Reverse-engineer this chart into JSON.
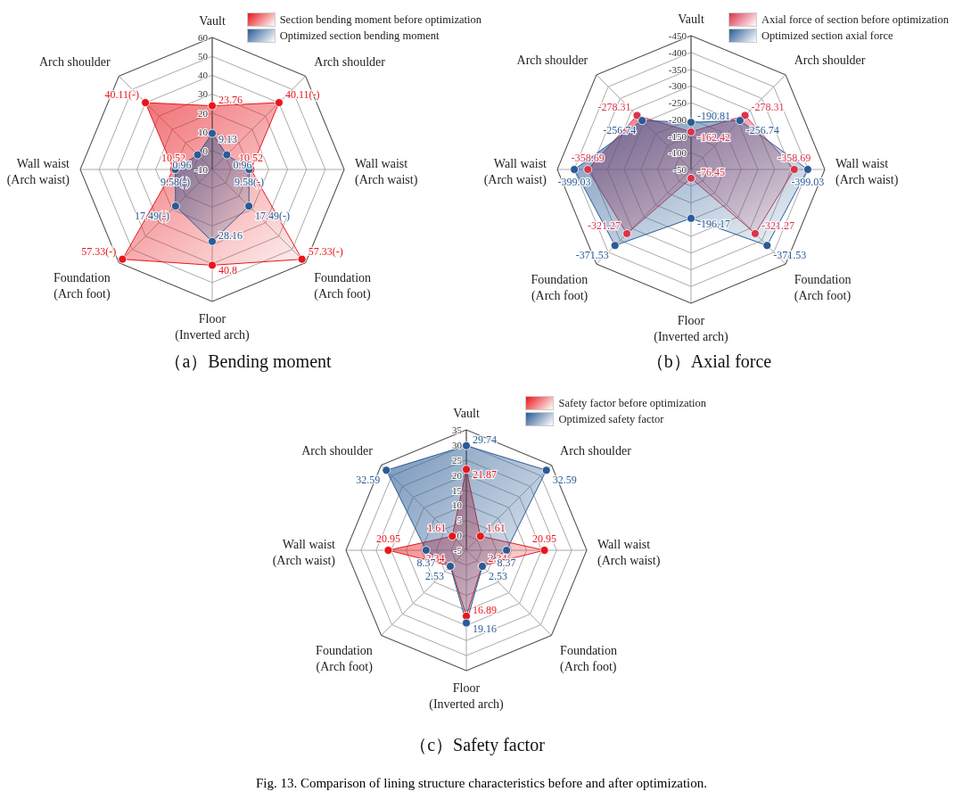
{
  "chart_data": [
    {
      "type": "radar",
      "title": "（a）Bending moment",
      "categories": [
        "Vault",
        "Arch shoulder",
        "Wall waist\n(Arch waist)",
        "Foundation\n(Arch foot)",
        "Floor\n(Inverted arch)",
        "Foundation\n(Arch foot)",
        "Wall waist\n(Arch waist)",
        "Arch shoulder"
      ],
      "ylim": [
        -10,
        60
      ],
      "yticks": [
        -10,
        0,
        10,
        20,
        30,
        40,
        50,
        60
      ],
      "grid": true,
      "legend": "top right",
      "marker": "circle",
      "series": [
        {
          "name": "Section bending moment before optimization",
          "color": "#e8161c",
          "values": [
            23.76,
            40.11,
            10.52,
            57.33,
            40.8,
            57.33,
            10.52,
            40.11
          ],
          "value_labels": [
            "23.76",
            "40.11(-)",
            "10.52",
            "57.33(-)",
            "40.8",
            "57.33(-)",
            "10.52",
            "40.11(-)"
          ]
        },
        {
          "name": "Optimized section bending moment",
          "color": "#2a5b95",
          "values": [
            9.13,
            0.96,
            9.58,
            17.49,
            28.16,
            17.49,
            9.58,
            0.96
          ],
          "value_labels": [
            "9.13",
            "0.96",
            "9.58(-)",
            "17.49(-)",
            "28.16",
            "17.49(-)",
            "9.58(-)",
            "0.96"
          ]
        }
      ]
    },
    {
      "type": "radar",
      "title": "（b）Axial force",
      "categories": [
        "Vault",
        "Arch shoulder",
        "Wall waist\n(Arch waist)",
        "Foundation\n(Arch foot)",
        "Floor\n(Inverted arch)",
        "Foundation\n(Arch foot)",
        "Wall waist\n(Arch waist)",
        "Arch shoulder"
      ],
      "ylim": [
        -50,
        -450
      ],
      "yticks": [
        -50,
        -100,
        -150,
        -200,
        -250,
        -300,
        -350,
        -400,
        -450
      ],
      "grid": true,
      "legend": "top right",
      "marker": "circle",
      "data_labels": true,
      "series": [
        {
          "name": "Axial force of section before optimization",
          "color": "#d9344c",
          "values": [
            -162.42,
            -278.31,
            -358.69,
            -321.27,
            -76.45,
            -321.27,
            -358.69,
            -278.31
          ]
        },
        {
          "name": "Optimized section axial force",
          "color": "#2a5b95",
          "values": [
            -190.81,
            -256.74,
            -399.03,
            -371.53,
            -196.17,
            -371.53,
            -399.03,
            -256.74
          ]
        }
      ]
    },
    {
      "type": "radar",
      "title": "（c）Safety factor",
      "categories": [
        "Vault",
        "Arch shoulder",
        "Wall waist\n(Arch waist)",
        "Foundation\n(Arch foot)",
        "Floor\n(Inverted arch)",
        "Foundation\n(Arch foot)",
        "Wall waist\n(Arch waist)",
        "Arch shoulder"
      ],
      "ylim": [
        -5,
        35
      ],
      "yticks": [
        -5,
        0,
        5,
        10,
        15,
        20,
        25,
        30,
        35
      ],
      "grid": true,
      "legend": "top right",
      "marker": "circle",
      "data_labels": true,
      "annotations": [
        "Fig. 13.  Comparison of lining structure characteristics before and after optimization."
      ],
      "series": [
        {
          "name": "Safety factor before optimization",
          "color": "#e8161c",
          "values": [
            21.87,
            1.61,
            20.95,
            2.34,
            16.89,
            2.34,
            20.95,
            1.61
          ]
        },
        {
          "name": "Optimized safety factor",
          "color": "#2a5b95",
          "values": [
            29.74,
            32.59,
            8.37,
            2.53,
            19.16,
            2.53,
            8.37,
            32.59
          ]
        }
      ]
    }
  ]
}
